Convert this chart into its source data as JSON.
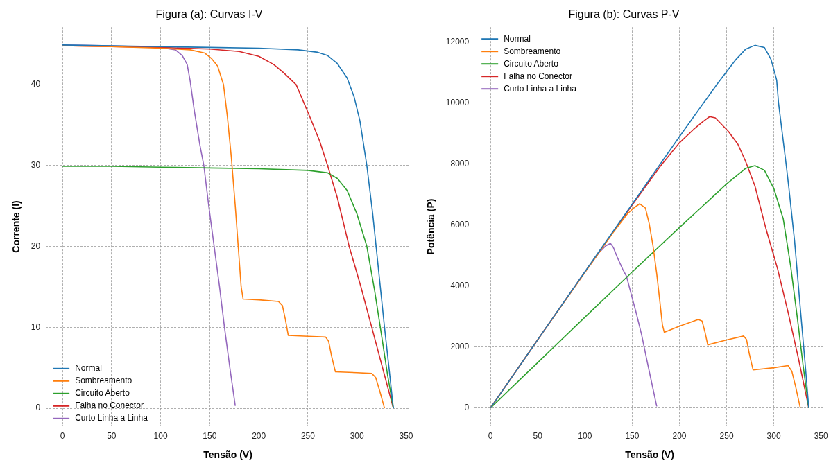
{
  "chart_data": [
    {
      "type": "line",
      "title": "Figura (a): Curvas I-V",
      "xlabel": "Tensão (V)",
      "ylabel": "Corrente (I)",
      "xlim": [
        -16.9,
        353.9
      ],
      "ylim": [
        -2.2,
        47.1
      ],
      "xticks": [
        0,
        50,
        100,
        150,
        200,
        250,
        300,
        350
      ],
      "yticks": [
        0,
        10,
        20,
        30,
        40
      ],
      "grid": true,
      "legend": "lower left",
      "series": [
        {
          "name": "Normal",
          "color": "#1f77b4",
          "x": [
            0,
            50,
            100,
            150,
            200,
            240,
            260,
            270,
            280,
            290,
            297,
            303,
            310,
            316,
            322,
            328,
            333,
            337
          ],
          "values": [
            44.9,
            44.8,
            44.7,
            44.6,
            44.5,
            44.3,
            44.0,
            43.6,
            42.6,
            40.8,
            38.5,
            35.5,
            30,
            24,
            17,
            10,
            4.5,
            0
          ]
        },
        {
          "name": "Sombreamento",
          "color": "#ff7f0e",
          "x": [
            0,
            50,
            100,
            130,
            145,
            152,
            158,
            164,
            168,
            172,
            176,
            179,
            182,
            184,
            200,
            220,
            224,
            227,
            230,
            250,
            268,
            271,
            274,
            278,
            300,
            315,
            319,
            323,
            328
          ],
          "values": [
            44.8,
            44.7,
            44.5,
            44.3,
            43.9,
            43.2,
            42.3,
            40,
            36,
            31,
            25,
            20,
            15,
            13.5,
            13.4,
            13.2,
            12.7,
            11,
            9,
            8.9,
            8.8,
            8.3,
            6.5,
            4.5,
            4.4,
            4.3,
            3.8,
            2.2,
            0
          ]
        },
        {
          "name": "Circuito Aberto",
          "color": "#2ca02c",
          "x": [
            0,
            50,
            100,
            150,
            200,
            250,
            270,
            280,
            290,
            300,
            310,
            318,
            325,
            331,
            337
          ],
          "values": [
            29.9,
            29.9,
            29.8,
            29.7,
            29.6,
            29.4,
            29.1,
            28.4,
            26.9,
            24,
            20,
            14.5,
            9,
            4.2,
            0
          ]
        },
        {
          "name": "Falha no Conector",
          "color": "#d62728",
          "x": [
            0,
            50,
            100,
            150,
            180,
            200,
            215,
            225,
            238,
            252,
            262,
            270,
            280,
            292,
            304,
            315,
            326,
            337
          ],
          "values": [
            44.8,
            44.7,
            44.6,
            44.4,
            44.1,
            43.5,
            42.5,
            41.5,
            40,
            36,
            33,
            30,
            26,
            20,
            15,
            10,
            5,
            0
          ]
        },
        {
          "name": "Curto Linha a Linha",
          "color": "#9467bd",
          "x": [
            0,
            50,
            100,
            115,
            122,
            127,
            130,
            134,
            140,
            144,
            149,
            154.5,
            160,
            165,
            170.5,
            176
          ],
          "values": [
            44.9,
            44.8,
            44.6,
            44.3,
            43.6,
            42.5,
            40.5,
            37,
            32.5,
            30,
            25,
            20,
            15,
            10,
            5,
            0.3
          ]
        }
      ]
    },
    {
      "type": "line",
      "title": "Figura (b): Curvas P-V",
      "xlabel": "Tensão (V)",
      "ylabel": "Potência (P)",
      "xlim": [
        -16.9,
        353.9
      ],
      "ylim": [
        -595,
        12495
      ],
      "xticks": [
        0,
        50,
        100,
        150,
        200,
        250,
        300,
        350
      ],
      "yticks": [
        0,
        2000,
        4000,
        6000,
        8000,
        10000,
        12000
      ],
      "grid": true,
      "legend": "top left",
      "series": [
        {
          "name": "Normal",
          "color": "#1f77b4",
          "x": [
            0,
            50,
            100,
            150,
            200,
            240,
            260,
            270,
            280,
            290,
            297,
            303,
            305,
            313,
            316,
            322,
            328,
            333,
            337
          ],
          "values": [
            0,
            2240,
            4470,
            6690,
            8900,
            10630,
            11440,
            11770,
            11900,
            11830,
            11440,
            10760,
            10000,
            8000,
            7200,
            5470,
            3280,
            1500,
            0
          ]
        },
        {
          "name": "Sombreamento",
          "color": "#ff7f0e",
          "x": [
            0,
            50,
            100,
            130,
            145,
            152,
            158,
            164,
            168,
            172,
            176,
            179,
            182,
            184,
            200,
            220,
            224,
            227,
            230,
            250,
            268,
            271,
            274,
            278,
            300,
            315,
            319,
            323,
            328
          ],
          "values": [
            0,
            2240,
            4450,
            5760,
            6370,
            6570,
            6700,
            6560,
            6050,
            5330,
            4400,
            3580,
            2730,
            2480,
            2680,
            2900,
            2850,
            2500,
            2070,
            2230,
            2360,
            2250,
            1780,
            1250,
            1320,
            1390,
            1210,
            710,
            0
          ]
        },
        {
          "name": "Circuito Aberto",
          "color": "#2ca02c",
          "x": [
            0,
            50,
            100,
            150,
            200,
            250,
            270,
            280,
            290,
            300,
            310,
            318,
            325,
            331,
            337
          ],
          "values": [
            0,
            1490,
            2980,
            4460,
            5920,
            7350,
            7860,
            7950,
            7800,
            7200,
            6200,
            4610,
            2930,
            1390,
            0
          ]
        },
        {
          "name": "Falha no Conector",
          "color": "#d62728",
          "x": [
            0,
            50,
            100,
            150,
            180,
            200,
            215,
            225,
            232,
            238,
            252,
            262,
            270,
            280,
            292,
            304,
            315,
            326,
            337
          ],
          "values": [
            0,
            2240,
            4460,
            6660,
            7940,
            8700,
            9140,
            9400,
            9560,
            9520,
            9070,
            8650,
            8100,
            7280,
            5840,
            4560,
            3150,
            1630,
            0
          ]
        },
        {
          "name": "Curto Linha a Linha",
          "color": "#9467bd",
          "x": [
            0,
            50,
            100,
            115,
            122,
            127,
            130,
            134,
            140,
            144,
            149,
            154.5,
            160,
            165,
            170.5,
            176
          ],
          "values": [
            0,
            2240,
            4460,
            5100,
            5320,
            5400,
            5270,
            4960,
            4550,
            4320,
            3730,
            3090,
            2400,
            1650,
            850,
            50
          ]
        }
      ]
    }
  ]
}
